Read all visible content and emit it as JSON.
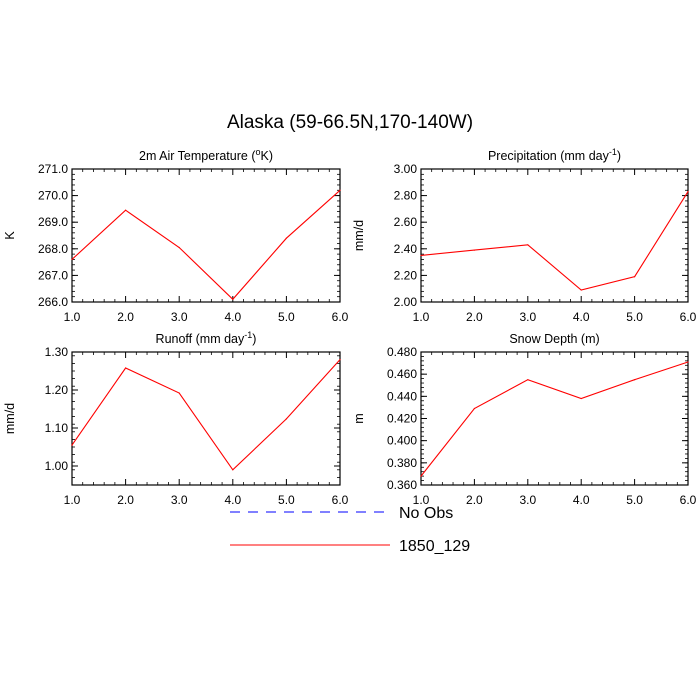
{
  "title": "Alaska (59-66.5N,170-140W)",
  "colors": {
    "model": "#ff0000",
    "obs": "#0000ff",
    "axis": "#000000"
  },
  "legend": [
    {
      "label": "No Obs",
      "color": "#0000ff",
      "dash": "dashed"
    },
    {
      "label": "1850_129",
      "color": "#ff0000",
      "dash": "solid"
    }
  ],
  "chart_data": [
    {
      "type": "line",
      "title_main": "2m Air Temperature (",
      "title_sup": "o",
      "title_end": "K)",
      "ylabel": "K",
      "x": [
        1,
        2,
        3,
        4,
        5,
        6
      ],
      "xticks": [
        "1.0",
        "2.0",
        "3.0",
        "4.0",
        "5.0",
        "6.0"
      ],
      "xlim": [
        1,
        6
      ],
      "ylim": [
        266.0,
        271.0
      ],
      "yticks": [
        266.0,
        267.0,
        268.0,
        269.0,
        270.0,
        271.0
      ],
      "yticklabels": [
        "266.0",
        "267.0",
        "268.0",
        "269.0",
        "270.0",
        "271.0"
      ],
      "series": [
        {
          "name": "1850_129",
          "values": [
            267.6,
            269.45,
            268.05,
            266.1,
            268.4,
            270.2
          ]
        }
      ]
    },
    {
      "type": "line",
      "title_main": "Precipitation (mm day",
      "title_sup": "-1",
      "title_end": ")",
      "ylabel": "mm/d",
      "x": [
        1,
        2,
        3,
        4,
        5,
        6
      ],
      "xticks": [
        "1.0",
        "2.0",
        "3.0",
        "4.0",
        "5.0",
        "6.0"
      ],
      "xlim": [
        1,
        6
      ],
      "ylim": [
        2.0,
        3.0
      ],
      "yticks": [
        2.0,
        2.2,
        2.4,
        2.6,
        2.8,
        3.0
      ],
      "yticklabels": [
        "2.00",
        "2.20",
        "2.40",
        "2.60",
        "2.80",
        "3.00"
      ],
      "series": [
        {
          "name": "1850_129",
          "values": [
            2.35,
            2.39,
            2.43,
            2.09,
            2.19,
            2.83
          ]
        }
      ]
    },
    {
      "type": "line",
      "title_main": "Runoff (mm day",
      "title_sup": "-1",
      "title_end": ")",
      "ylabel": "mm/d",
      "x": [
        1,
        2,
        3,
        4,
        5,
        6
      ],
      "xticks": [
        "1.0",
        "2.0",
        "3.0",
        "4.0",
        "5.0",
        "6.0"
      ],
      "xlim": [
        1,
        6
      ],
      "ylim": [
        0.95,
        1.3
      ],
      "yticks": [
        1.0,
        1.1,
        1.2,
        1.3
      ],
      "yticklabels": [
        "1.00",
        "1.10",
        "1.20",
        "1.30"
      ],
      "series": [
        {
          "name": "1850_129",
          "values": [
            1.055,
            1.258,
            1.192,
            0.99,
            1.124,
            1.28
          ]
        }
      ]
    },
    {
      "type": "line",
      "title_main": "Snow Depth (m)",
      "title_sup": "",
      "title_end": "",
      "ylabel": "m",
      "x": [
        1,
        2,
        3,
        4,
        5,
        6
      ],
      "xticks": [
        "1.0",
        "2.0",
        "3.0",
        "4.0",
        "5.0",
        "6.0"
      ],
      "xlim": [
        1,
        6
      ],
      "ylim": [
        0.36,
        0.48
      ],
      "yticks": [
        0.36,
        0.38,
        0.4,
        0.42,
        0.44,
        0.46,
        0.48
      ],
      "yticklabels": [
        "0.360",
        "0.380",
        "0.400",
        "0.420",
        "0.440",
        "0.460",
        "0.480"
      ],
      "series": [
        {
          "name": "1850_129",
          "values": [
            0.368,
            0.429,
            0.455,
            0.438,
            0.455,
            0.471
          ]
        }
      ]
    }
  ]
}
